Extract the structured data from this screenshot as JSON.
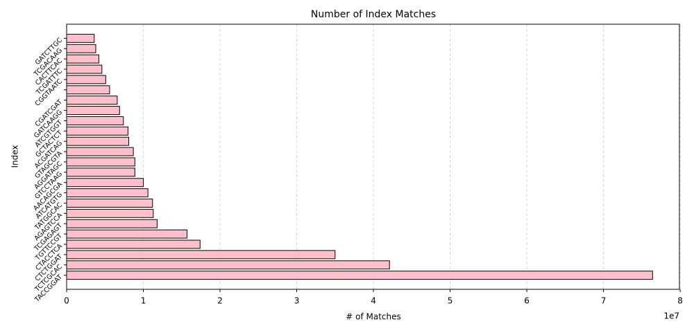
{
  "chart_data": {
    "type": "barh",
    "title": "Number of Index Matches",
    "x_label": "# of Matches",
    "y_label": "Index",
    "x_offset_label": "1e7",
    "categories": [
      "TACCGGAT",
      "TCTCGCAC",
      "CTCTGGAT",
      "CTACCTCA",
      "TGTTCCGT",
      "TCGAGAGT",
      "AGAGTCCA",
      "TATGGCAC",
      "ATCATGTG",
      "AACAGCGA",
      "GTCCTAAG",
      "AGGATAGC",
      "GTAGCGTA",
      "ACGATCAG",
      "GCTACTCT",
      "ATCGTGGT",
      "GATCAAGG",
      "CGATCGAT",
      null,
      "CGGTAATC",
      "TCGATTTC",
      "CACTTCAC",
      "TCGACAAG",
      "GATCTTGC"
    ],
    "values": [
      76400000,
      42100000,
      35000000,
      17400000,
      15700000,
      11800000,
      11300000,
      11200000,
      10600000,
      10000000,
      8900000,
      8900000,
      8700000,
      8100000,
      8000000,
      7400000,
      6900000,
      6600000,
      5600000,
      5100000,
      4600000,
      4200000,
      3800000,
      3600000
    ],
    "color": "#ffc0cb",
    "edge_color": "#000000",
    "xlim": [
      0,
      79900000
    ],
    "xticks": [
      0,
      {
        "value": 10000000,
        "label": "1"
      },
      {
        "value": 20000000,
        "label": "2"
      },
      {
        "value": 30000000,
        "label": "3"
      },
      {
        "value": 40000000,
        "label": "4"
      },
      {
        "value": 50000000,
        "label": "5"
      },
      {
        "value": 60000000,
        "label": "6"
      },
      {
        "value": 70000000,
        "label": "7"
      },
      {
        "value": 80000000,
        "label": "8"
      }
    ],
    "grid": true
  }
}
